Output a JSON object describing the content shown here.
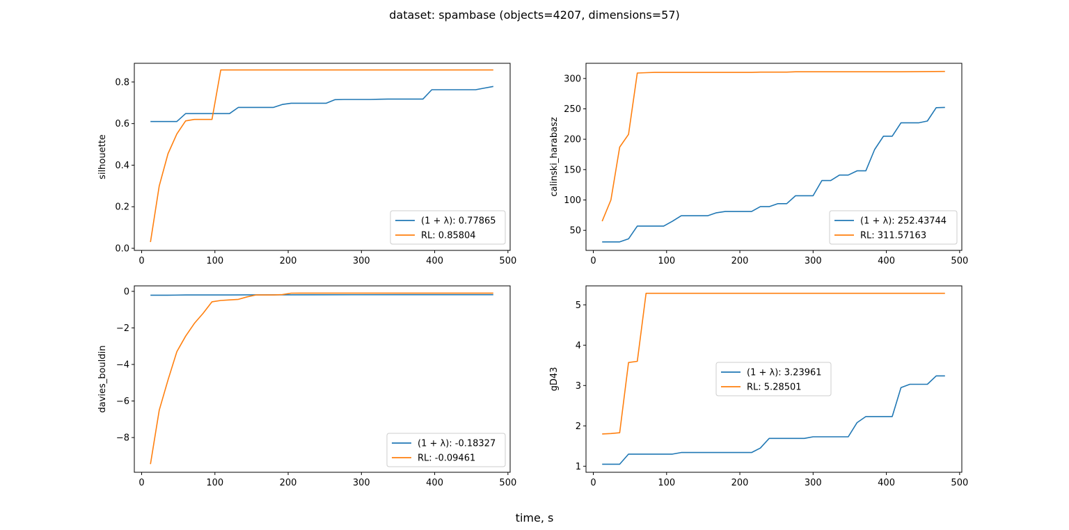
{
  "figure": {
    "title": "dataset: spambase (objects=4207, dimensions=57)",
    "xlabel": "time, s"
  },
  "colors": {
    "blue": "#1f77b4",
    "orange": "#ff7f0e"
  },
  "chart_data": [
    {
      "type": "line",
      "ylabel": "silhouette",
      "xlim": [
        -10,
        503
      ],
      "ylim": [
        -0.01,
        0.89
      ],
      "xticks": [
        0,
        100,
        200,
        300,
        400,
        500
      ],
      "yticks": [
        0.0,
        0.2,
        0.4,
        0.6,
        0.8
      ],
      "yticklabels": [
        "0.0",
        "0.2",
        "0.4",
        "0.6",
        "0.8"
      ],
      "legend_position": "lower-right",
      "series": [
        {
          "name": "(1 + λ): 0.77865",
          "color": "#1f77b4",
          "x": [
            12,
            24,
            36,
            48,
            60,
            72,
            84,
            96,
            108,
            120,
            132,
            144,
            156,
            168,
            180,
            192,
            204,
            216,
            228,
            240,
            252,
            264,
            276,
            288,
            300,
            312,
            324,
            336,
            348,
            360,
            372,
            384,
            396,
            408,
            420,
            432,
            444,
            456,
            468,
            480
          ],
          "y": [
            0.61,
            0.61,
            0.61,
            0.61,
            0.648,
            0.648,
            0.648,
            0.648,
            0.648,
            0.648,
            0.678,
            0.678,
            0.678,
            0.678,
            0.678,
            0.692,
            0.698,
            0.698,
            0.698,
            0.698,
            0.698,
            0.715,
            0.716,
            0.716,
            0.716,
            0.716,
            0.717,
            0.718,
            0.718,
            0.718,
            0.718,
            0.718,
            0.763,
            0.763,
            0.763,
            0.763,
            0.763,
            0.763,
            0.771,
            0.77865
          ]
        },
        {
          "name": "RL: 0.85804",
          "color": "#ff7f0e",
          "x": [
            12,
            24,
            36,
            48,
            60,
            72,
            84,
            96,
            108,
            120,
            240,
            360,
            480
          ],
          "y": [
            0.03,
            0.3,
            0.455,
            0.55,
            0.613,
            0.62,
            0.62,
            0.62,
            0.858,
            0.858,
            0.858,
            0.858,
            0.85804
          ]
        }
      ]
    },
    {
      "type": "line",
      "ylabel": "calinski_harabasz",
      "xlim": [
        -10,
        503
      ],
      "ylim": [
        17,
        325
      ],
      "xticks": [
        0,
        100,
        200,
        300,
        400,
        500
      ],
      "yticks": [
        50,
        100,
        150,
        200,
        250,
        300
      ],
      "yticklabels": [
        "50",
        "100",
        "150",
        "200",
        "250",
        "300"
      ],
      "legend_position": "lower-right",
      "series": [
        {
          "name": "(1 + λ): 252.43744",
          "color": "#1f77b4",
          "x": [
            12,
            24,
            36,
            48,
            60,
            72,
            84,
            96,
            108,
            120,
            132,
            144,
            156,
            168,
            180,
            192,
            204,
            216,
            228,
            240,
            252,
            264,
            276,
            288,
            300,
            312,
            324,
            336,
            348,
            360,
            372,
            384,
            396,
            408,
            420,
            432,
            444,
            456,
            468,
            480
          ],
          "y": [
            31,
            31,
            31,
            36,
            57,
            57,
            57,
            57,
            65,
            74,
            74,
            74,
            74,
            79,
            81,
            81,
            81,
            81,
            89,
            89,
            94,
            94,
            107,
            107,
            107,
            132,
            132,
            141,
            141,
            148,
            148,
            183,
            205,
            205,
            227,
            227,
            227,
            230,
            252,
            252.43744
          ]
        },
        {
          "name": "RL: 311.57163",
          "color": "#ff7f0e",
          "x": [
            12,
            24,
            36,
            48,
            60,
            72,
            84,
            96,
            108,
            120,
            144,
            168,
            192,
            216,
            228,
            252,
            264,
            276,
            300,
            360,
            420,
            480
          ],
          "y": [
            65,
            100,
            187,
            208,
            309,
            309.5,
            310,
            310,
            310,
            310,
            310,
            310,
            310,
            310,
            310.5,
            310.5,
            310.5,
            311,
            311,
            311,
            311,
            311.57163
          ]
        }
      ]
    },
    {
      "type": "line",
      "ylabel": "davies_bouldin",
      "xlim": [
        -10,
        503
      ],
      "ylim": [
        -9.9,
        0.3
      ],
      "xticks": [
        0,
        100,
        200,
        300,
        400,
        500
      ],
      "yticks": [
        -8,
        -6,
        -4,
        -2,
        0
      ],
      "yticklabels": [
        "−8",
        "−6",
        "−4",
        "−2",
        "0"
      ],
      "legend_position": "lower-right",
      "series": [
        {
          "name": "(1 + λ): -0.18327",
          "color": "#1f77b4",
          "x": [
            12,
            36,
            60,
            96,
            120,
            144,
            168,
            240,
            360,
            480
          ],
          "y": [
            -0.21,
            -0.21,
            -0.2,
            -0.2,
            -0.2,
            -0.19,
            -0.19,
            -0.186,
            -0.184,
            -0.18327
          ]
        },
        {
          "name": "RL: -0.09461",
          "color": "#ff7f0e",
          "x": [
            12,
            24,
            36,
            48,
            60,
            72,
            84,
            96,
            108,
            120,
            132,
            144,
            156,
            168,
            180,
            192,
            204,
            216,
            240,
            360,
            480
          ],
          "y": [
            -9.45,
            -6.5,
            -4.85,
            -3.3,
            -2.45,
            -1.75,
            -1.2,
            -0.57,
            -0.5,
            -0.47,
            -0.44,
            -0.3,
            -0.2,
            -0.2,
            -0.2,
            -0.18,
            -0.1,
            -0.095,
            -0.095,
            -0.095,
            -0.09461
          ]
        }
      ]
    },
    {
      "type": "line",
      "ylabel": "gD43",
      "xlim": [
        -10,
        503
      ],
      "ylim": [
        0.85,
        5.47
      ],
      "xticks": [
        0,
        100,
        200,
        300,
        400,
        500
      ],
      "yticks": [
        1,
        2,
        3,
        4,
        5
      ],
      "yticklabels": [
        "1",
        "2",
        "3",
        "4",
        "5"
      ],
      "legend_position": "center",
      "series": [
        {
          "name": "(1 + λ): 3.23961",
          "color": "#1f77b4",
          "x": [
            12,
            24,
            36,
            48,
            60,
            72,
            84,
            96,
            108,
            120,
            132,
            144,
            156,
            168,
            180,
            192,
            204,
            216,
            228,
            240,
            252,
            264,
            276,
            288,
            300,
            312,
            324,
            336,
            348,
            360,
            372,
            384,
            396,
            408,
            420,
            432,
            444,
            456,
            468,
            480
          ],
          "y": [
            1.05,
            1.05,
            1.05,
            1.3,
            1.3,
            1.3,
            1.3,
            1.3,
            1.3,
            1.34,
            1.34,
            1.34,
            1.34,
            1.34,
            1.34,
            1.34,
            1.34,
            1.34,
            1.45,
            1.69,
            1.69,
            1.69,
            1.69,
            1.69,
            1.73,
            1.73,
            1.73,
            1.73,
            1.73,
            2.08,
            2.23,
            2.23,
            2.23,
            2.23,
            2.95,
            3.03,
            3.03,
            3.03,
            3.24,
            3.23961
          ]
        },
        {
          "name": "RL: 5.28501",
          "color": "#ff7f0e",
          "x": [
            12,
            24,
            36,
            48,
            60,
            72,
            84,
            120,
            240,
            360,
            480
          ],
          "y": [
            1.8,
            1.81,
            1.83,
            3.57,
            3.6,
            5.285,
            5.285,
            5.285,
            5.285,
            5.285,
            5.28501
          ]
        }
      ]
    }
  ]
}
